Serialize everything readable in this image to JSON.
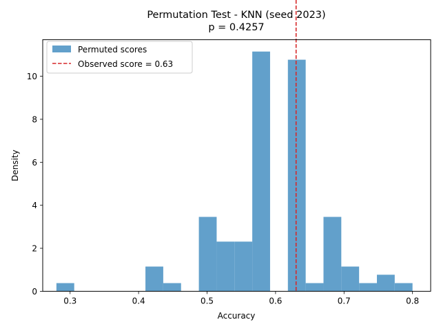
{
  "chart_data": {
    "type": "bar",
    "title": "Permutation Test - KNN (seed 2023)",
    "subtitle": "p = 0.4257",
    "xlabel": "Accuracy",
    "ylabel": "Density",
    "xlim": [
      0.26,
      0.8265
    ],
    "ylim": [
      0,
      11.7
    ],
    "xticks": [
      0.3,
      0.4,
      0.5,
      0.6,
      0.7,
      0.8
    ],
    "yticks": [
      0,
      2,
      4,
      6,
      8,
      10
    ],
    "bar_color": "#62a0cb",
    "observed_color": "#d62728",
    "bins": [
      {
        "x0": 0.28,
        "x1": 0.306,
        "value": 0.38
      },
      {
        "x0": 0.306,
        "x1": 0.332,
        "value": 0
      },
      {
        "x0": 0.332,
        "x1": 0.358,
        "value": 0
      },
      {
        "x0": 0.358,
        "x1": 0.384,
        "value": 0
      },
      {
        "x0": 0.384,
        "x1": 0.41,
        "value": 0
      },
      {
        "x0": 0.41,
        "x1": 0.436,
        "value": 1.15
      },
      {
        "x0": 0.436,
        "x1": 0.462,
        "value": 0.38
      },
      {
        "x0": 0.462,
        "x1": 0.488,
        "value": 0
      },
      {
        "x0": 0.488,
        "x1": 0.514,
        "value": 3.46
      },
      {
        "x0": 0.514,
        "x1": 0.54,
        "value": 2.31
      },
      {
        "x0": 0.54,
        "x1": 0.566,
        "value": 2.31
      },
      {
        "x0": 0.566,
        "x1": 0.592,
        "value": 11.15
      },
      {
        "x0": 0.592,
        "x1": 0.618,
        "value": 0
      },
      {
        "x0": 0.618,
        "x1": 0.644,
        "value": 10.77
      },
      {
        "x0": 0.644,
        "x1": 0.67,
        "value": 0.38
      },
      {
        "x0": 0.67,
        "x1": 0.696,
        "value": 3.46
      },
      {
        "x0": 0.696,
        "x1": 0.722,
        "value": 1.15
      },
      {
        "x0": 0.722,
        "x1": 0.748,
        "value": 0.38
      },
      {
        "x0": 0.748,
        "x1": 0.774,
        "value": 0.77
      },
      {
        "x0": 0.774,
        "x1": 0.8,
        "value": 0.38
      }
    ],
    "observed_score": 0.63,
    "legend": {
      "placement": "upper-left",
      "entries": [
        {
          "label": "Permuted scores",
          "kind": "patch"
        },
        {
          "label": "Observed score = 0.63",
          "kind": "dashed-line"
        }
      ]
    },
    "grid": false
  }
}
